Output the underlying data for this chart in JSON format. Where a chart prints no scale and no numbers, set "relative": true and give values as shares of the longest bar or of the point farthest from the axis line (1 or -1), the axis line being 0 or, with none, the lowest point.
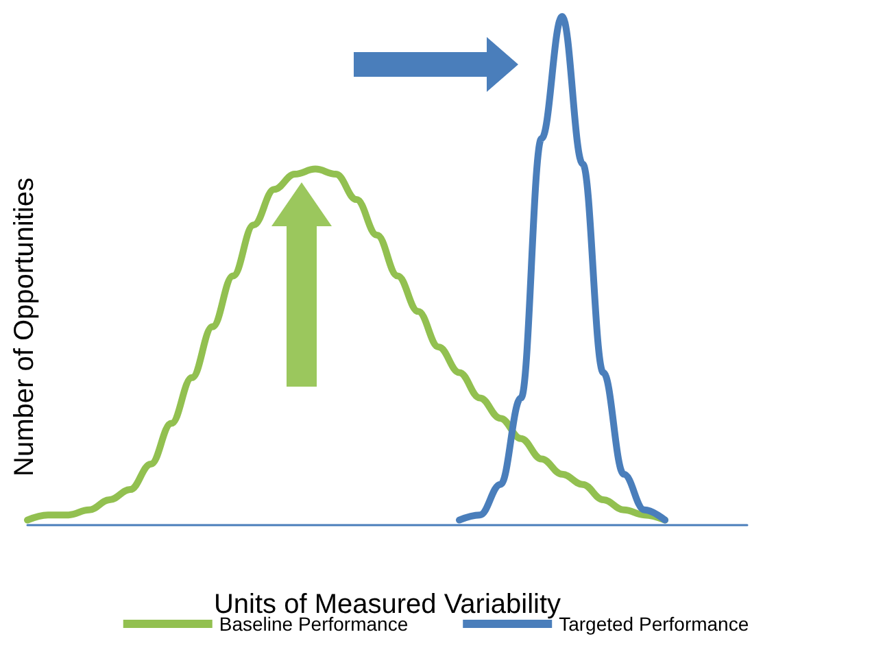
{
  "chart_data": {
    "type": "line",
    "relative": true,
    "xlabel": "Units of Measured Variability",
    "ylabel": "Number of Opportunities",
    "categories": [
      null,
      null,
      null,
      null,
      null,
      null,
      null,
      null,
      null,
      null,
      null,
      null,
      null,
      null,
      null,
      null,
      null,
      null,
      null,
      null,
      null,
      null,
      null,
      null,
      null,
      null,
      null,
      null,
      null,
      null,
      null,
      null,
      null,
      null,
      null,
      null
    ],
    "series": [
      {
        "name": "Baseline Performance",
        "color": "#92c050",
        "values": [
          0.01,
          0.02,
          0.02,
          0.03,
          0.05,
          0.07,
          0.12,
          0.2,
          0.29,
          0.39,
          0.49,
          0.59,
          0.66,
          0.69,
          0.7,
          0.69,
          0.64,
          0.57,
          0.49,
          0.42,
          0.35,
          0.3,
          0.25,
          0.21,
          0.17,
          0.13,
          0.1,
          0.08,
          0.05,
          0.03,
          0.02,
          0.01,
          null,
          null,
          null,
          null
        ]
      },
      {
        "name": "Targeted Performance",
        "color": "#4a7ebb",
        "values": [
          null,
          null,
          null,
          null,
          null,
          null,
          null,
          null,
          null,
          null,
          null,
          null,
          null,
          null,
          null,
          null,
          null,
          null,
          null,
          null,
          null,
          0.01,
          0.02,
          0.08,
          0.25,
          0.76,
          1,
          0.71,
          0.3,
          0.1,
          0.03,
          0.01,
          null,
          null,
          null,
          null
        ]
      }
    ],
    "legend": "bottom",
    "grid": false,
    "marker": "none",
    "line_style": "solid"
  }
}
